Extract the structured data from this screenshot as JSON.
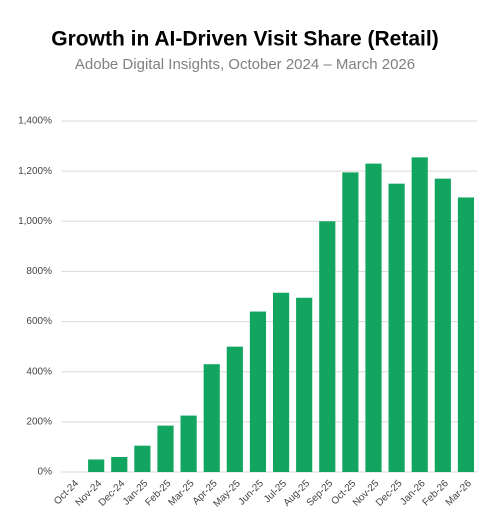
{
  "chart_data": {
    "type": "bar",
    "title": "Growth in AI-Driven Visit Share (Retail)",
    "subtitle": "Adobe Digital Insights, October 2024 – March 2026",
    "categories": [
      "Oct-24",
      "Nov-24",
      "Dec-24",
      "Jan-25",
      "Feb-25",
      "Mar-25",
      "Apr-25",
      "May-25",
      "Jun-25",
      "Jul-25",
      "Aug-25",
      "Sep-25",
      "Oct-25",
      "Nov-25",
      "Dec-25",
      "Jan-26",
      "Feb-26",
      "Mar-26"
    ],
    "values": [
      0,
      50,
      60,
      105,
      185,
      225,
      430,
      500,
      640,
      715,
      695,
      1000,
      1195,
      1230,
      1150,
      1255,
      1170,
      1095
    ],
    "color": "#12a55f",
    "ylim": [
      0,
      1400
    ],
    "yticks": [
      {
        "value": 0,
        "label": "0%"
      },
      {
        "value": 200,
        "label": "200%"
      },
      {
        "value": 400,
        "label": "400%"
      },
      {
        "value": 600,
        "label": "600%"
      },
      {
        "value": 800,
        "label": "800%"
      },
      {
        "value": 1000,
        "label": "1,000%"
      },
      {
        "value": 1200,
        "label": "1,200%"
      },
      {
        "value": 1400,
        "label": "1,400%"
      }
    ],
    "grid": true
  }
}
